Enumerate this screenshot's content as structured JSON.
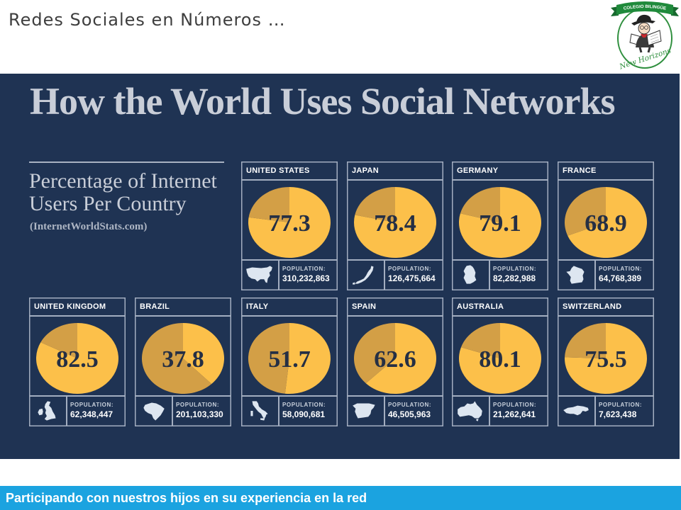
{
  "header": {
    "title": "Redes Sociales en Números …"
  },
  "logo": {
    "banner_text": "COLEGIO BILINGÜE",
    "script_text": "New Horizons"
  },
  "infographic": {
    "title": "How the World Uses Social Networks",
    "subtitle_lines": [
      "Percentage of Internet",
      "Users Per Country"
    ],
    "source": "(InternetWorldStats.com)",
    "population_label": "POPULATION:",
    "slice_colors": [
      "#fcc04a",
      "#d39f46"
    ]
  },
  "chart_data": [
    {
      "type": "pie",
      "title": "UNITED STATES",
      "values": [
        77.3,
        22.7
      ],
      "population": "310,232,863",
      "icon": "usa-map-icon"
    },
    {
      "type": "pie",
      "title": "JAPAN",
      "values": [
        78.4,
        21.6
      ],
      "population": "126,475,664",
      "icon": "japan-map-icon"
    },
    {
      "type": "pie",
      "title": "GERMANY",
      "values": [
        79.1,
        20.9
      ],
      "population": "82,282,988",
      "icon": "germany-map-icon"
    },
    {
      "type": "pie",
      "title": "FRANCE",
      "values": [
        68.9,
        31.1
      ],
      "population": "64,768,389",
      "icon": "france-map-icon"
    },
    {
      "type": "pie",
      "title": "UNITED KINGDOM",
      "values": [
        82.5,
        17.5
      ],
      "population": "62,348,447",
      "icon": "uk-map-icon"
    },
    {
      "type": "pie",
      "title": "BRAZIL",
      "values": [
        37.8,
        62.2
      ],
      "population": "201,103,330",
      "icon": "brazil-map-icon"
    },
    {
      "type": "pie",
      "title": "ITALY",
      "values": [
        51.7,
        48.3
      ],
      "population": "58,090,681",
      "icon": "italy-map-icon"
    },
    {
      "type": "pie",
      "title": "SPAIN",
      "values": [
        62.6,
        37.4
      ],
      "population": "46,505,963",
      "icon": "spain-map-icon"
    },
    {
      "type": "pie",
      "title": "AUSTRALIA",
      "values": [
        80.1,
        19.9
      ],
      "population": "21,262,641",
      "icon": "australia-map-icon"
    },
    {
      "type": "pie",
      "title": "SWITZERLAND",
      "values": [
        75.5,
        24.5
      ],
      "population": "7,623,438",
      "icon": "switzerland-map-icon"
    }
  ],
  "footer": {
    "text": "Participando con nuestros hijos en su experiencia en la red"
  }
}
